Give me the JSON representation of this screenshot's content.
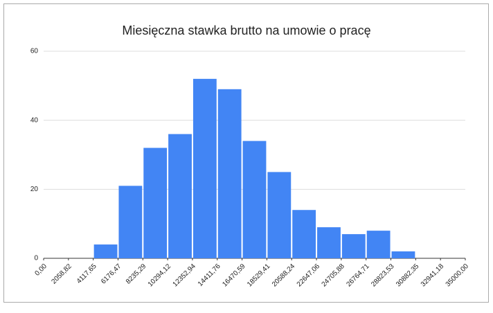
{
  "chart_data": {
    "type": "histogram",
    "title": "Miesięczna stawka brutto na umowie o pracę",
    "bins": [
      0,
      2058.82,
      4117.65,
      6176.47,
      8235.29,
      10294.12,
      12352.94,
      14411.76,
      16470.59,
      18529.41,
      20588.24,
      22647.06,
      24705.88,
      26764.71,
      28823.53,
      30882.35,
      32941.18,
      35000
    ],
    "values": [
      0,
      0,
      4,
      21,
      32,
      36,
      52,
      49,
      34,
      25,
      14,
      9,
      7,
      8,
      2,
      0,
      0
    ],
    "color": "#4285f4",
    "xlim": [
      0,
      35000
    ],
    "xticks": [
      {
        "value": 0,
        "label": "0,00"
      },
      {
        "value": 2058.82,
        "label": "2058,82"
      },
      {
        "value": 4117.65,
        "label": "4117,65"
      },
      {
        "value": 6176.47,
        "label": "6176,47"
      },
      {
        "value": 8235.29,
        "label": "8235,29"
      },
      {
        "value": 10294.12,
        "label": "10294,12"
      },
      {
        "value": 12352.94,
        "label": "12352,94"
      },
      {
        "value": 14411.76,
        "label": "14411,76"
      },
      {
        "value": 16470.59,
        "label": "16470,59"
      },
      {
        "value": 18529.41,
        "label": "18529,41"
      },
      {
        "value": 20588.24,
        "label": "20588,24"
      },
      {
        "value": 22647.06,
        "label": "22647,06"
      },
      {
        "value": 24705.88,
        "label": "24705,88"
      },
      {
        "value": 26764.71,
        "label": "26764,71"
      },
      {
        "value": 28823.53,
        "label": "28823,53"
      },
      {
        "value": 30882.35,
        "label": "30882,35"
      },
      {
        "value": 32941.18,
        "label": "32941,18"
      },
      {
        "value": 35000,
        "label": "35000,00"
      }
    ],
    "ylim": [
      0,
      60
    ],
    "yticks": [
      0,
      20,
      40,
      60
    ],
    "grid": true
  }
}
